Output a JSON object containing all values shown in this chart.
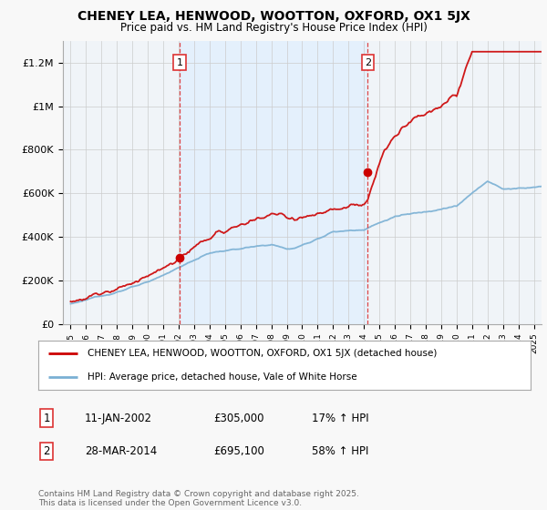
{
  "title": "CHENEY LEA, HENWOOD, WOOTTON, OXFORD, OX1 5JX",
  "subtitle": "Price paid vs. HM Land Registry's House Price Index (HPI)",
  "ylabel_ticks": [
    "£0",
    "£200K",
    "£400K",
    "£600K",
    "£800K",
    "£1M",
    "£1.2M"
  ],
  "ytick_values": [
    0,
    200000,
    400000,
    600000,
    800000,
    1000000,
    1200000
  ],
  "ylim": [
    0,
    1300000
  ],
  "xlim_start": 1994.5,
  "xlim_end": 2025.5,
  "line1_color": "#cc0000",
  "line2_color": "#7ab0d4",
  "vline_color": "#dd3333",
  "shade_color": "#ddeeff",
  "marker1_year": 2002.05,
  "marker2_year": 2014.25,
  "sale1_price": 305000,
  "sale2_price": 695100,
  "legend_line1": "CHENEY LEA, HENWOOD, WOOTTON, OXFORD, OX1 5JX (detached house)",
  "legend_line2": "HPI: Average price, detached house, Vale of White Horse",
  "table_row1": [
    "1",
    "11-JAN-2002",
    "£305,000",
    "17% ↑ HPI"
  ],
  "table_row2": [
    "2",
    "28-MAR-2014",
    "£695,100",
    "58% ↑ HPI"
  ],
  "footnote": "Contains HM Land Registry data © Crown copyright and database right 2025.\nThis data is licensed under the Open Government Licence v3.0.",
  "bg_color": "#f8f8f8",
  "plot_bg_color": "#f0f4f8",
  "grid_color": "#cccccc"
}
